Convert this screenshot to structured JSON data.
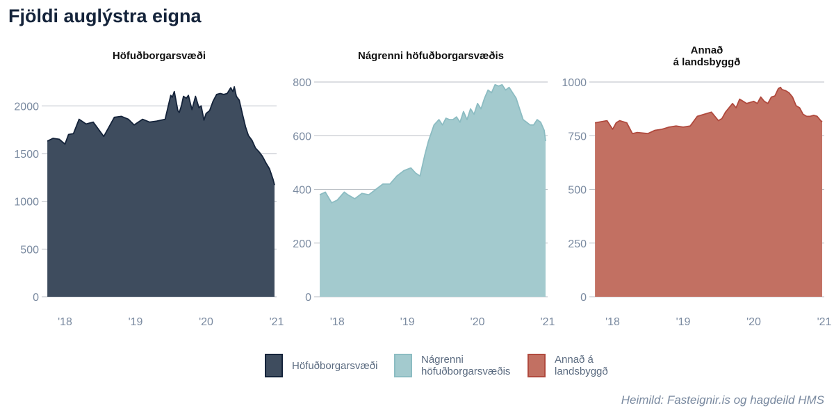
{
  "title": "Fjöldi auglýstra eigna",
  "caption": "Heimild: Fasteignir.is og hagdeild HMS",
  "chart_data": [
    {
      "type": "area",
      "title": "Höfuðborgarsvæði",
      "color": "#3e4c5e",
      "line_color": "#14233a",
      "xlim": [
        2017.67,
        2021.0
      ],
      "ylim": [
        0,
        2250
      ],
      "yticks": [
        0,
        500,
        1000,
        1500,
        2000
      ],
      "xticks": [
        2018,
        2019,
        2020,
        2021
      ],
      "xtick_labels": [
        "'18",
        "'19",
        "'20",
        "'21"
      ],
      "x": [
        2017.75,
        2017.83,
        2017.92,
        2018.0,
        2018.05,
        2018.12,
        2018.2,
        2018.3,
        2018.4,
        2018.55,
        2018.7,
        2018.8,
        2018.9,
        2018.98,
        2019.1,
        2019.2,
        2019.3,
        2019.42,
        2019.5,
        2019.52,
        2019.55,
        2019.6,
        2019.62,
        2019.65,
        2019.68,
        2019.72,
        2019.75,
        2019.8,
        2019.85,
        2019.9,
        2019.93,
        2019.97,
        2020.0,
        2020.05,
        2020.1,
        2020.15,
        2020.2,
        2020.25,
        2020.3,
        2020.35,
        2020.38,
        2020.4,
        2020.43,
        2020.47,
        2020.52,
        2020.56,
        2020.6,
        2020.65,
        2020.7,
        2020.75,
        2020.8,
        2020.85,
        2020.9,
        2020.95,
        2020.97
      ],
      "y": [
        1630,
        1660,
        1650,
        1600,
        1700,
        1710,
        1860,
        1810,
        1830,
        1680,
        1880,
        1890,
        1860,
        1800,
        1860,
        1830,
        1840,
        1860,
        2110,
        2090,
        2150,
        1950,
        1930,
        2000,
        2100,
        2080,
        2110,
        1960,
        2100,
        1980,
        2000,
        1850,
        1920,
        1950,
        2050,
        2120,
        2130,
        2120,
        2130,
        2190,
        2150,
        2200,
        2100,
        2060,
        1900,
        1780,
        1690,
        1640,
        1560,
        1520,
        1470,
        1400,
        1340,
        1230,
        1170
      ]
    },
    {
      "type": "area",
      "title": "Nágrenni höfuðborgarsvæðis",
      "color": "#a3cace",
      "line_color": "#8cbcc2",
      "xlim": [
        2017.67,
        2021.0
      ],
      "ylim": [
        0,
        800
      ],
      "yticks": [
        0,
        200,
        400,
        600,
        800
      ],
      "xticks": [
        2018,
        2019,
        2020,
        2021
      ],
      "xtick_labels": [
        "'18",
        "'19",
        "'20",
        "'21"
      ],
      "x": [
        2017.75,
        2017.83,
        2017.92,
        2018.0,
        2018.1,
        2018.15,
        2018.25,
        2018.35,
        2018.45,
        2018.55,
        2018.65,
        2018.75,
        2018.85,
        2018.95,
        2019.05,
        2019.12,
        2019.18,
        2019.25,
        2019.3,
        2019.38,
        2019.45,
        2019.5,
        2019.55,
        2019.6,
        2019.65,
        2019.7,
        2019.75,
        2019.8,
        2019.85,
        2019.9,
        2019.95,
        2020.0,
        2020.05,
        2020.1,
        2020.15,
        2020.2,
        2020.25,
        2020.3,
        2020.35,
        2020.4,
        2020.45,
        2020.5,
        2020.55,
        2020.6,
        2020.65,
        2020.7,
        2020.75,
        2020.8,
        2020.85,
        2020.9,
        2020.95,
        2020.97
      ],
      "y": [
        380,
        390,
        350,
        360,
        390,
        380,
        365,
        385,
        380,
        400,
        420,
        420,
        450,
        470,
        480,
        460,
        450,
        530,
        580,
        640,
        660,
        640,
        665,
        660,
        660,
        670,
        650,
        690,
        660,
        700,
        680,
        720,
        700,
        740,
        770,
        760,
        790,
        785,
        790,
        770,
        780,
        760,
        740,
        700,
        660,
        650,
        640,
        640,
        660,
        650,
        620,
        580
      ]
    },
    {
      "type": "area",
      "title": "Annað á landsbyggð",
      "color": "#c27062",
      "line_color": "#b04a3e",
      "xlim": [
        2017.67,
        2021.0
      ],
      "ylim": [
        0,
        1000
      ],
      "yticks": [
        0,
        250,
        500,
        750,
        1000
      ],
      "xticks": [
        2018,
        2019,
        2020,
        2021
      ],
      "xtick_labels": [
        "'18",
        "'19",
        "'20",
        "'21"
      ],
      "x": [
        2017.75,
        2017.83,
        2017.92,
        2018.0,
        2018.05,
        2018.1,
        2018.2,
        2018.28,
        2018.35,
        2018.5,
        2018.6,
        2018.7,
        2018.8,
        2018.9,
        2019.0,
        2019.1,
        2019.2,
        2019.25,
        2019.3,
        2019.4,
        2019.5,
        2019.55,
        2019.6,
        2019.7,
        2019.75,
        2019.8,
        2019.85,
        2019.9,
        2019.95,
        2020.0,
        2020.05,
        2020.1,
        2020.15,
        2020.2,
        2020.25,
        2020.3,
        2020.35,
        2020.38,
        2020.4,
        2020.45,
        2020.5,
        2020.55,
        2020.6,
        2020.65,
        2020.7,
        2020.75,
        2020.8,
        2020.85,
        2020.9,
        2020.95,
        2020.97
      ],
      "y": [
        810,
        815,
        820,
        780,
        810,
        820,
        810,
        760,
        765,
        760,
        775,
        780,
        790,
        795,
        790,
        795,
        840,
        845,
        850,
        860,
        820,
        830,
        860,
        900,
        880,
        920,
        910,
        900,
        905,
        910,
        900,
        930,
        910,
        900,
        930,
        935,
        970,
        975,
        965,
        960,
        950,
        930,
        890,
        880,
        850,
        840,
        840,
        845,
        840,
        820,
        815
      ]
    }
  ],
  "legend": [
    {
      "label": "Höfuðborgarsvæði",
      "color": "#3e4c5e",
      "border": "#14233a"
    },
    {
      "label": "Nágrenni höfuðborgarsvæðis",
      "color": "#a3cace",
      "border": "#8cbcc2"
    },
    {
      "label": "Annað á landsbyggð",
      "color": "#c27062",
      "border": "#b04a3e"
    }
  ]
}
